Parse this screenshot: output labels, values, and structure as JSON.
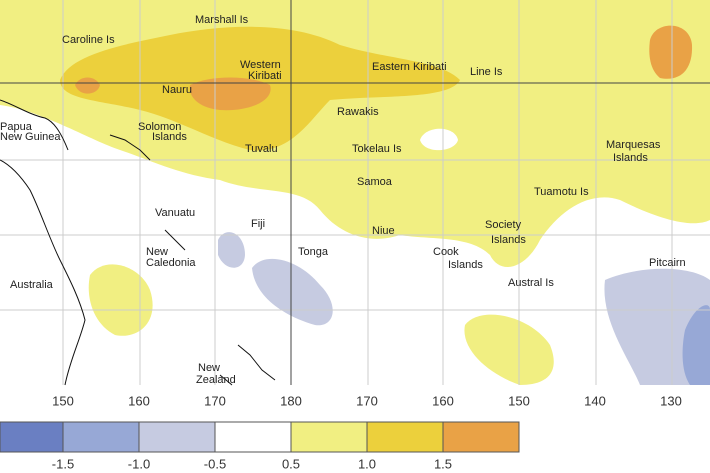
{
  "places": [
    "Marshall Is",
    "Caroline Is",
    "Western",
    "Kiribati",
    "Eastern Kiribati",
    "Line Is",
    "Nauru",
    "Papua",
    "New Guinea",
    "Solomon",
    "Islands",
    "Rawakis",
    "Tuvalu",
    "Tokelau Is",
    "Marquesas",
    "Islands",
    "Samoa",
    "Tuamotu Is",
    "Vanuatu",
    "Fiji",
    "Niue",
    "Society",
    "Islands",
    "Tonga",
    "Cook",
    "Islands",
    "New",
    "Caledonia",
    "Australia",
    "Austral Is",
    "Pitcairn",
    "New",
    "Zealand"
  ],
  "longitude_labels": [
    "150",
    "160",
    "170",
    "180",
    "170",
    "160",
    "150",
    "140",
    "130"
  ],
  "scale": {
    "colors": [
      "#6a7fc2",
      "#97a8d6",
      "#c6cbe1",
      "#ffffff",
      "#f1ef82",
      "#ecd03c",
      "#e9a246"
    ],
    "labels": [
      "-1.5",
      "-1.0",
      "-0.5",
      "0.5",
      "1.0",
      "1.5"
    ]
  }
}
